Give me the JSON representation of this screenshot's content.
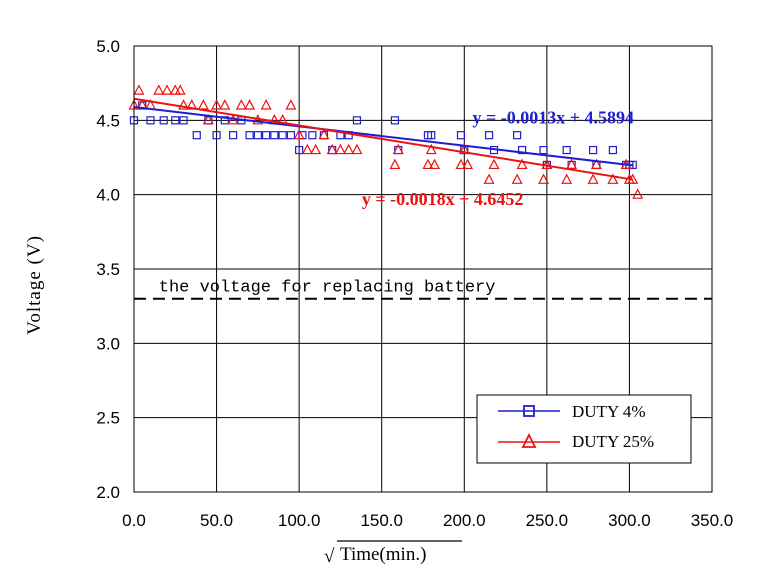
{
  "chart_data": {
    "type": "scatter",
    "title": "",
    "xlabel": "Time(min.)",
    "xlabel_sqrt": "√",
    "ylabel": "Voltage (V)",
    "xlim": [
      0,
      350
    ],
    "ylim": [
      2.0,
      5.0
    ],
    "x_ticks": [
      "0.0",
      "50.0",
      "100.0",
      "150.0",
      "200.0",
      "250.0",
      "300.0",
      "350.0"
    ],
    "y_ticks": [
      "2.0",
      "2.5",
      "3.0",
      "3.5",
      "4.0",
      "4.5",
      "5.0"
    ],
    "grid": true,
    "legend_position": "bottom-right",
    "series": [
      {
        "name": "DUTY 4%",
        "color": "#1f1fd0",
        "marker": "square",
        "x": [
          0,
          5,
          10,
          18,
          25,
          30,
          38,
          45,
          50,
          55,
          60,
          65,
          70,
          75,
          80,
          85,
          90,
          95,
          100,
          102,
          108,
          115,
          120,
          125,
          130,
          135,
          158,
          160,
          178,
          180,
          198,
          200,
          215,
          218,
          232,
          235,
          248,
          250,
          262,
          265,
          278,
          280,
          290,
          298,
          300,
          302
        ],
        "y": [
          4.5,
          4.6,
          4.5,
          4.5,
          4.5,
          4.5,
          4.4,
          4.5,
          4.4,
          4.5,
          4.4,
          4.5,
          4.4,
          4.4,
          4.4,
          4.4,
          4.4,
          4.4,
          4.3,
          4.4,
          4.4,
          4.4,
          4.3,
          4.4,
          4.4,
          4.5,
          4.5,
          4.3,
          4.4,
          4.4,
          4.4,
          4.3,
          4.4,
          4.3,
          4.4,
          4.3,
          4.3,
          4.2,
          4.3,
          4.2,
          4.3,
          4.2,
          4.3,
          4.2,
          4.2,
          4.2
        ]
      },
      {
        "name": "DUTY 25%",
        "color": "#ee1111",
        "marker": "triangle",
        "x": [
          0,
          3,
          5,
          10,
          15,
          20,
          25,
          28,
          30,
          35,
          42,
          45,
          50,
          55,
          60,
          65,
          70,
          75,
          80,
          85,
          90,
          95,
          100,
          105,
          110,
          115,
          120,
          125,
          130,
          135,
          158,
          160,
          178,
          180,
          182,
          198,
          200,
          202,
          215,
          218,
          232,
          235,
          248,
          250,
          262,
          265,
          278,
          280,
          290,
          298,
          300,
          302,
          305
        ],
        "y": [
          4.6,
          4.7,
          4.6,
          4.6,
          4.7,
          4.7,
          4.7,
          4.7,
          4.6,
          4.6,
          4.6,
          4.5,
          4.6,
          4.6,
          4.5,
          4.6,
          4.6,
          4.5,
          4.6,
          4.5,
          4.5,
          4.6,
          4.4,
          4.3,
          4.3,
          4.4,
          4.3,
          4.3,
          4.3,
          4.3,
          4.2,
          4.3,
          4.2,
          4.3,
          4.2,
          4.2,
          4.3,
          4.2,
          4.1,
          4.2,
          4.1,
          4.2,
          4.1,
          4.2,
          4.1,
          4.2,
          4.1,
          4.2,
          4.1,
          4.2,
          4.1,
          4.1,
          4.0
        ]
      }
    ],
    "trendlines": [
      {
        "series": "DUTY 4%",
        "slope": -0.0013,
        "intercept": 4.5894,
        "x_range": [
          0,
          302
        ],
        "label": "y = -0.0013x + 4.5894",
        "label_x": 205,
        "label_y": 4.48
      },
      {
        "series": "DUTY 25%",
        "slope": -0.0018,
        "intercept": 4.6452,
        "x_range": [
          0,
          302
        ],
        "label": "y = -0.0018x + 4.6452",
        "label_x": 138,
        "label_y": 3.93
      }
    ],
    "reference_line": {
      "y": 3.3,
      "style": "dashed",
      "label": "the voltage for replacing battery",
      "label_x": 15,
      "label_y": 3.35
    }
  }
}
